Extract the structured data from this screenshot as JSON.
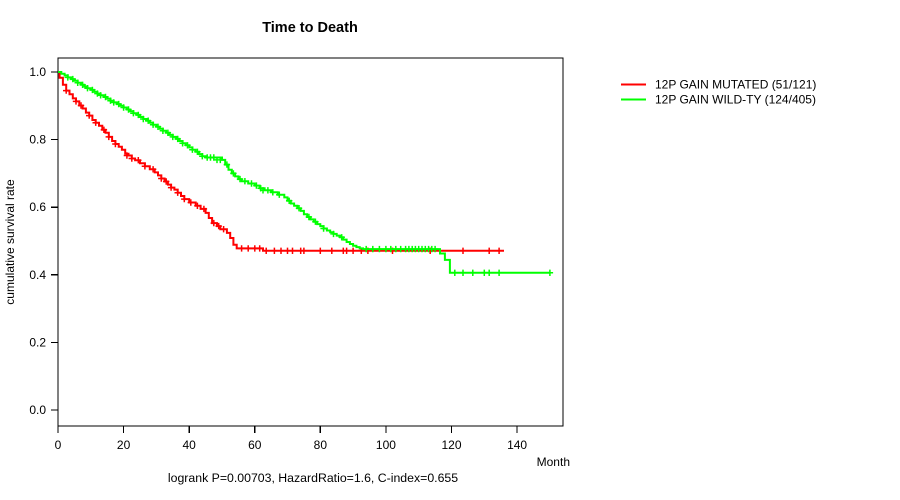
{
  "chart_data": {
    "type": "line",
    "subtype": "kaplan-meier-step-survival",
    "title": "Time to Death",
    "xlabel": "Month",
    "ylabel": "cumulative survival rate",
    "footer": "logrank P=0.00703, HazardRatio=1.6, C-index=0.655",
    "x_ticks": [
      0,
      20,
      40,
      60,
      80,
      100,
      120,
      140
    ],
    "y_ticks": [
      1.0,
      0.8,
      0.6,
      0.4,
      0.2,
      0.0
    ],
    "xlim": [
      0,
      154
    ],
    "ylim": [
      0,
      1
    ],
    "grid": false,
    "legend_position": "right-outside",
    "axis_color": "#000000",
    "background_color": "#ffffff",
    "series": [
      {
        "name": "12P GAIN MUTATED (51/121)",
        "color": "#ff0000",
        "events_total": "51/121",
        "end_month": 136,
        "final_rate": 0.471,
        "steps": [
          [
            0,
            1.0
          ],
          [
            0.5,
            0.983
          ],
          [
            1.5,
            0.962
          ],
          [
            2.5,
            0.945
          ],
          [
            3.5,
            0.934
          ],
          [
            4.5,
            0.922
          ],
          [
            5.5,
            0.913
          ],
          [
            6.5,
            0.901
          ],
          [
            7.5,
            0.892
          ],
          [
            8.5,
            0.88
          ],
          [
            9.5,
            0.871
          ],
          [
            10.5,
            0.858
          ],
          [
            11.5,
            0.85
          ],
          [
            12.5,
            0.841
          ],
          [
            13.5,
            0.829
          ],
          [
            14.5,
            0.82
          ],
          [
            15.5,
            0.808
          ],
          [
            16.5,
            0.796
          ],
          [
            17.5,
            0.787
          ],
          [
            18.5,
            0.779
          ],
          [
            19.5,
            0.77
          ],
          [
            20.5,
            0.758
          ],
          [
            21.5,
            0.753
          ],
          [
            22.5,
            0.744
          ],
          [
            23.5,
            0.739
          ],
          [
            25,
            0.73
          ],
          [
            26.5,
            0.721
          ],
          [
            28,
            0.712
          ],
          [
            29.5,
            0.703
          ],
          [
            30.5,
            0.694
          ],
          [
            31.5,
            0.685
          ],
          [
            32.5,
            0.676
          ],
          [
            33.5,
            0.667
          ],
          [
            34.5,
            0.658
          ],
          [
            35.5,
            0.652
          ],
          [
            36.5,
            0.643
          ],
          [
            37.5,
            0.633
          ],
          [
            38.5,
            0.624
          ],
          [
            40,
            0.614
          ],
          [
            42,
            0.604
          ],
          [
            43.5,
            0.595
          ],
          [
            45,
            0.583
          ],
          [
            46,
            0.568
          ],
          [
            47,
            0.553
          ],
          [
            48.5,
            0.544
          ],
          [
            49.5,
            0.535
          ],
          [
            51.5,
            0.524
          ],
          [
            52.5,
            0.509
          ],
          [
            53.5,
            0.489
          ],
          [
            54.5,
            0.478
          ],
          [
            62.5,
            0.471
          ]
        ],
        "censors": [
          [
            2.5,
            0.945
          ],
          [
            5.5,
            0.913
          ],
          [
            7,
            0.901
          ],
          [
            9.5,
            0.871
          ],
          [
            11.5,
            0.85
          ],
          [
            14,
            0.829
          ],
          [
            15.5,
            0.808
          ],
          [
            17.5,
            0.787
          ],
          [
            21,
            0.753
          ],
          [
            22.5,
            0.744
          ],
          [
            24.5,
            0.739
          ],
          [
            26.5,
            0.721
          ],
          [
            29,
            0.712
          ],
          [
            31.5,
            0.685
          ],
          [
            33,
            0.676
          ],
          [
            34.5,
            0.658
          ],
          [
            36.5,
            0.643
          ],
          [
            38.5,
            0.624
          ],
          [
            40.5,
            0.614
          ],
          [
            42.5,
            0.604
          ],
          [
            44.5,
            0.595
          ],
          [
            47.5,
            0.553
          ],
          [
            49,
            0.544
          ],
          [
            50.5,
            0.535
          ],
          [
            56,
            0.478
          ],
          [
            58,
            0.478
          ],
          [
            60,
            0.478
          ],
          [
            61.5,
            0.478
          ],
          [
            63.5,
            0.471
          ],
          [
            66,
            0.471
          ],
          [
            68,
            0.471
          ],
          [
            70,
            0.471
          ],
          [
            71.5,
            0.471
          ],
          [
            74,
            0.471
          ],
          [
            75,
            0.471
          ],
          [
            80,
            0.471
          ],
          [
            83.5,
            0.471
          ],
          [
            87,
            0.471
          ],
          [
            88,
            0.471
          ],
          [
            90,
            0.471
          ],
          [
            92.5,
            0.471
          ],
          [
            94.5,
            0.471
          ],
          [
            102,
            0.471
          ],
          [
            113.5,
            0.471
          ],
          [
            123.5,
            0.471
          ],
          [
            131.5,
            0.471
          ],
          [
            134.5,
            0.471
          ]
        ]
      },
      {
        "name": "12P GAIN WILD-TY (124/405)",
        "color": "#00ff00",
        "events_total": "124/405",
        "end_month": 150,
        "final_rate": 0.406,
        "steps": [
          [
            0,
            1.0
          ],
          [
            1,
            0.995
          ],
          [
            2,
            0.99
          ],
          [
            3,
            0.984
          ],
          [
            4,
            0.979
          ],
          [
            5,
            0.974
          ],
          [
            6,
            0.968
          ],
          [
            7,
            0.962
          ],
          [
            8,
            0.957
          ],
          [
            9,
            0.952
          ],
          [
            10,
            0.947
          ],
          [
            11,
            0.941
          ],
          [
            12,
            0.936
          ],
          [
            13,
            0.931
          ],
          [
            14,
            0.926
          ],
          [
            15,
            0.921
          ],
          [
            16,
            0.915
          ],
          [
            17,
            0.91
          ],
          [
            18,
            0.905
          ],
          [
            19,
            0.9
          ],
          [
            20,
            0.895
          ],
          [
            21,
            0.889
          ],
          [
            22,
            0.884
          ],
          [
            23,
            0.878
          ],
          [
            24,
            0.873
          ],
          [
            25,
            0.867
          ],
          [
            26,
            0.861
          ],
          [
            27,
            0.856
          ],
          [
            28,
            0.85
          ],
          [
            29,
            0.844
          ],
          [
            30,
            0.838
          ],
          [
            31,
            0.832
          ],
          [
            32,
            0.826
          ],
          [
            33,
            0.82
          ],
          [
            34,
            0.814
          ],
          [
            35,
            0.808
          ],
          [
            36,
            0.802
          ],
          [
            37,
            0.796
          ],
          [
            38,
            0.789
          ],
          [
            39,
            0.783
          ],
          [
            40,
            0.777
          ],
          [
            41,
            0.77
          ],
          [
            42,
            0.764
          ],
          [
            43,
            0.757
          ],
          [
            44,
            0.751
          ],
          [
            45,
            0.747
          ],
          [
            50,
            0.74
          ],
          [
            51,
            0.726
          ],
          [
            52,
            0.711
          ],
          [
            53,
            0.7
          ],
          [
            54,
            0.691
          ],
          [
            55,
            0.683
          ],
          [
            56,
            0.677
          ],
          [
            58,
            0.67
          ],
          [
            60,
            0.664
          ],
          [
            61.5,
            0.656
          ],
          [
            63,
            0.65
          ],
          [
            65,
            0.644
          ],
          [
            67,
            0.637
          ],
          [
            69,
            0.629
          ],
          [
            70,
            0.619
          ],
          [
            71,
            0.611
          ],
          [
            72,
            0.604
          ],
          [
            73,
            0.597
          ],
          [
            74,
            0.589
          ],
          [
            75,
            0.579
          ],
          [
            76,
            0.571
          ],
          [
            77,
            0.564
          ],
          [
            78,
            0.557
          ],
          [
            79,
            0.55
          ],
          [
            80,
            0.544
          ],
          [
            81,
            0.537
          ],
          [
            82,
            0.531
          ],
          [
            83,
            0.526
          ],
          [
            84,
            0.521
          ],
          [
            85,
            0.516
          ],
          [
            86,
            0.511
          ],
          [
            87,
            0.504
          ],
          [
            88,
            0.497
          ],
          [
            89,
            0.491
          ],
          [
            90,
            0.486
          ],
          [
            91,
            0.482
          ],
          [
            92,
            0.478
          ],
          [
            93,
            0.476
          ],
          [
            116.5,
            0.463
          ],
          [
            118,
            0.444
          ],
          [
            119.5,
            0.406
          ]
        ],
        "censors": [
          [
            3,
            0.984
          ],
          [
            4.5,
            0.979
          ],
          [
            6,
            0.968
          ],
          [
            7.5,
            0.962
          ],
          [
            9,
            0.952
          ],
          [
            10.5,
            0.947
          ],
          [
            12,
            0.936
          ],
          [
            13,
            0.931
          ],
          [
            14.5,
            0.926
          ],
          [
            16,
            0.915
          ],
          [
            17,
            0.91
          ],
          [
            18.5,
            0.905
          ],
          [
            20,
            0.895
          ],
          [
            21.5,
            0.889
          ],
          [
            23,
            0.878
          ],
          [
            24.5,
            0.873
          ],
          [
            26,
            0.861
          ],
          [
            27.5,
            0.856
          ],
          [
            29,
            0.844
          ],
          [
            30.5,
            0.838
          ],
          [
            32,
            0.826
          ],
          [
            33.5,
            0.82
          ],
          [
            35,
            0.808
          ],
          [
            36.5,
            0.802
          ],
          [
            38,
            0.789
          ],
          [
            39.5,
            0.783
          ],
          [
            41,
            0.77
          ],
          [
            42.5,
            0.764
          ],
          [
            44,
            0.751
          ],
          [
            45.5,
            0.747
          ],
          [
            46.5,
            0.747
          ],
          [
            47.5,
            0.747
          ],
          [
            48.5,
            0.74
          ],
          [
            49.5,
            0.74
          ],
          [
            51.5,
            0.726
          ],
          [
            53.5,
            0.7
          ],
          [
            55.5,
            0.683
          ],
          [
            57,
            0.677
          ],
          [
            59,
            0.67
          ],
          [
            60.5,
            0.664
          ],
          [
            61.8,
            0.656
          ],
          [
            62.5,
            0.65
          ],
          [
            64,
            0.65
          ],
          [
            65.5,
            0.644
          ],
          [
            67.5,
            0.637
          ],
          [
            70.5,
            0.619
          ],
          [
            73.5,
            0.597
          ],
          [
            76.5,
            0.571
          ],
          [
            78.5,
            0.557
          ],
          [
            81,
            0.537
          ],
          [
            84,
            0.521
          ],
          [
            86.5,
            0.511
          ],
          [
            94,
            0.476
          ],
          [
            96,
            0.476
          ],
          [
            98,
            0.476
          ],
          [
            100,
            0.476
          ],
          [
            101.5,
            0.476
          ],
          [
            103,
            0.476
          ],
          [
            104.5,
            0.476
          ],
          [
            106,
            0.476
          ],
          [
            107,
            0.476
          ],
          [
            108,
            0.476
          ],
          [
            109,
            0.476
          ],
          [
            110,
            0.476
          ],
          [
            111,
            0.476
          ],
          [
            112,
            0.476
          ],
          [
            113,
            0.476
          ],
          [
            114,
            0.476
          ],
          [
            115,
            0.476
          ],
          [
            121,
            0.406
          ],
          [
            123.5,
            0.406
          ],
          [
            126.5,
            0.406
          ],
          [
            130,
            0.406
          ],
          [
            131.5,
            0.406
          ],
          [
            134.5,
            0.406
          ],
          [
            150,
            0.406
          ]
        ]
      }
    ]
  }
}
